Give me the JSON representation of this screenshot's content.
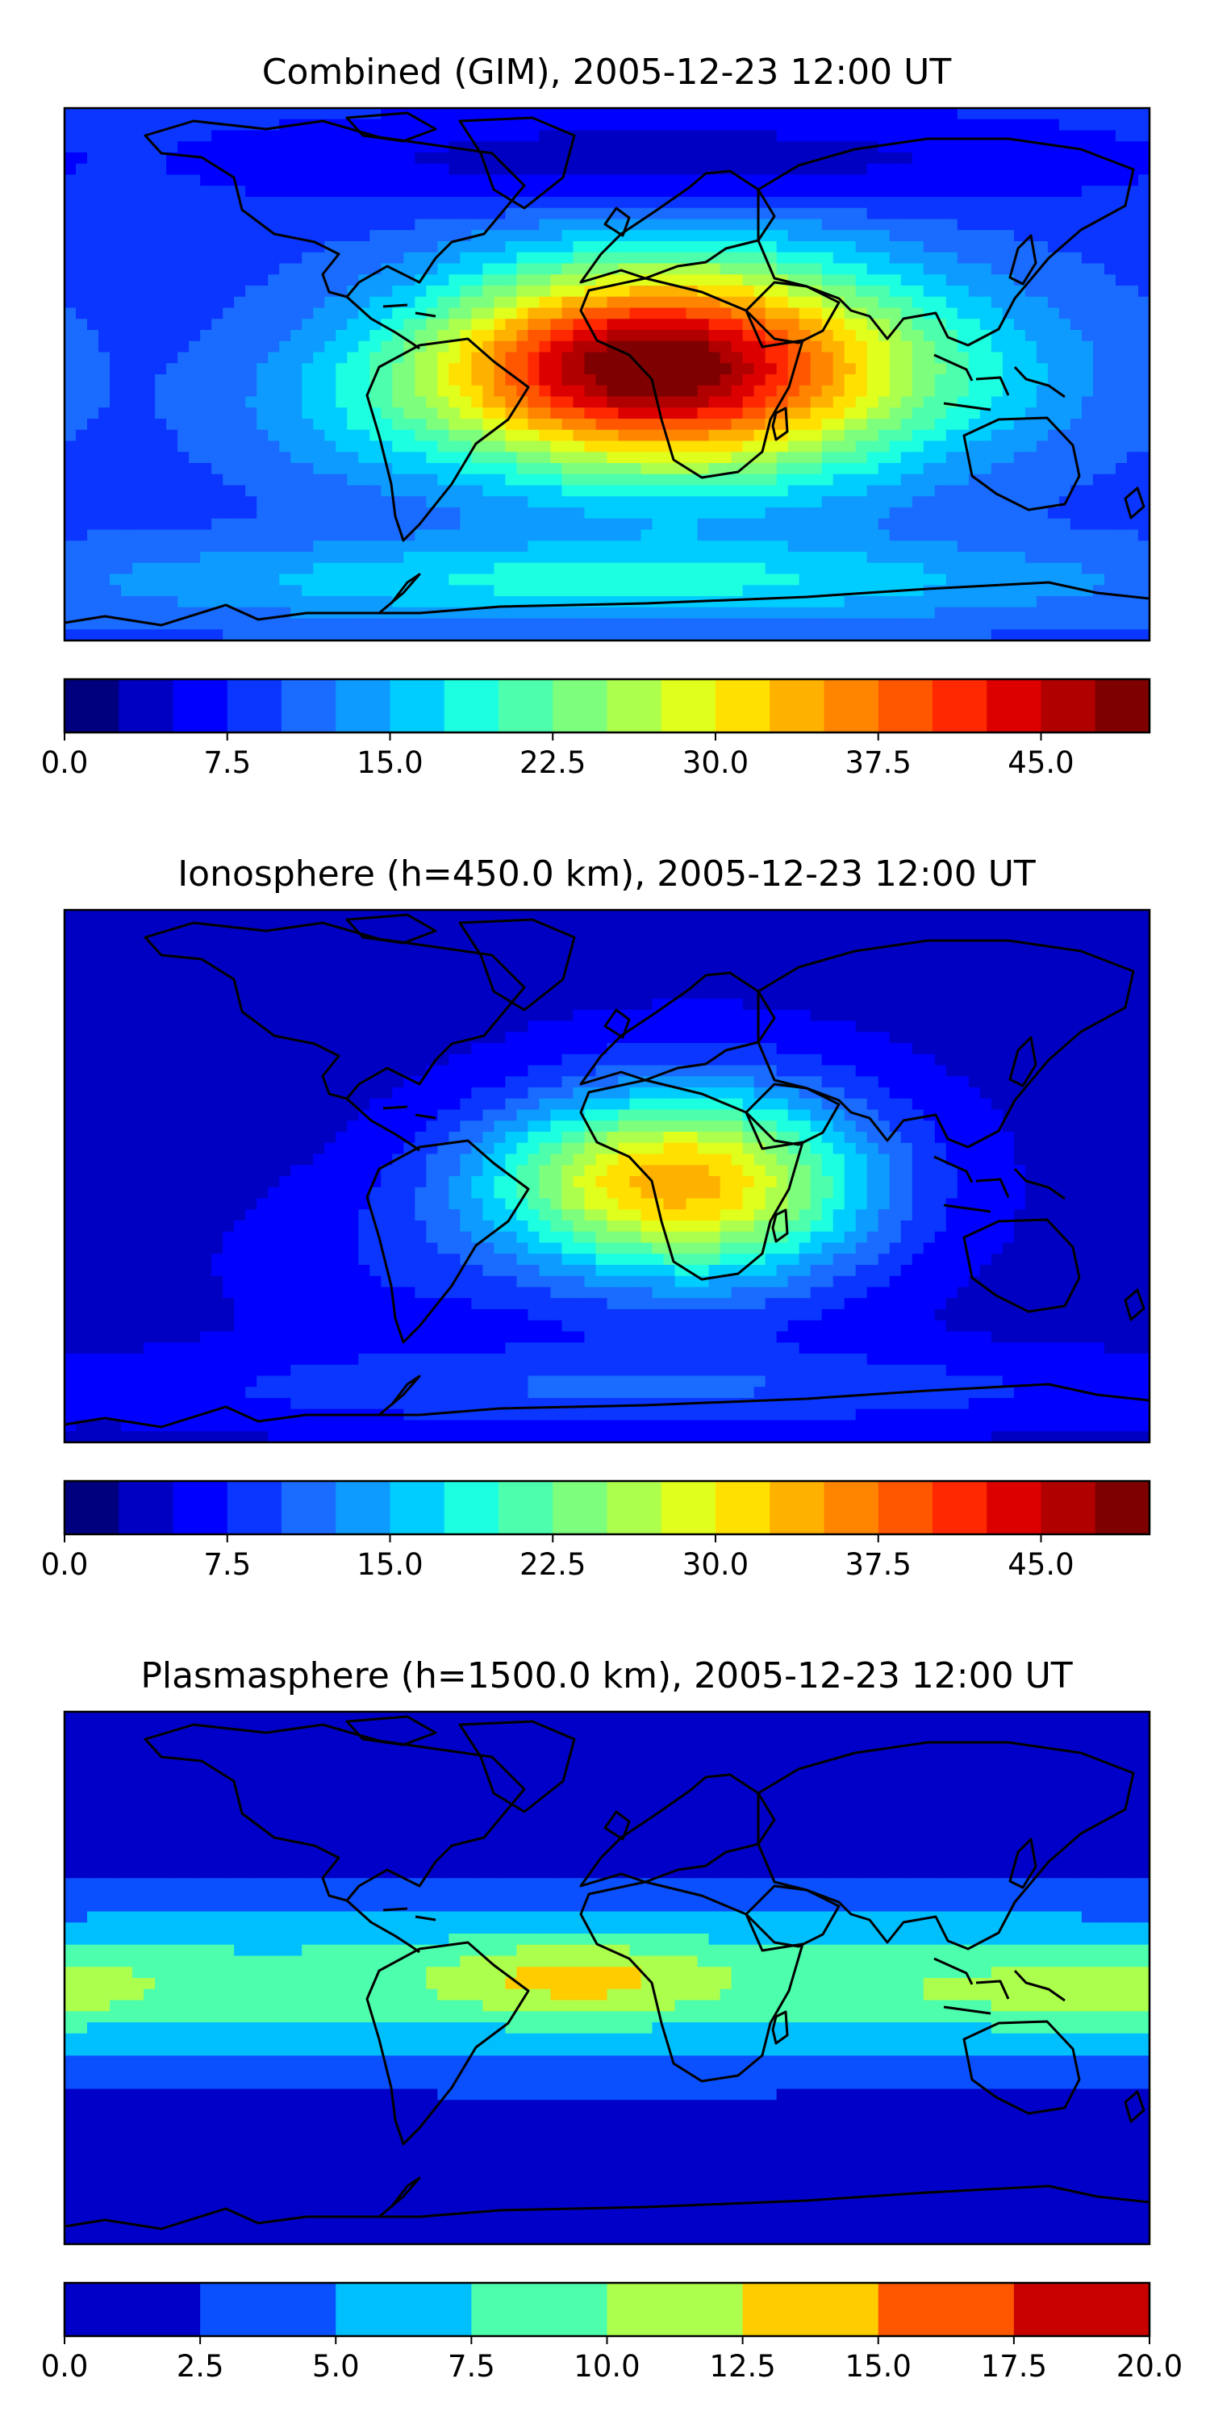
{
  "panels": [
    {
      "title": "Combined (GIM), 2005-12-23 12:00 UT",
      "vmax": 50,
      "levels": 20,
      "colorbar_ticks": [
        "0.0",
        "7.5",
        "15.0",
        "22.5",
        "30.0",
        "37.5",
        "45.0"
      ],
      "colorbar_tick_values": [
        0,
        7.5,
        15,
        22.5,
        30,
        37.5,
        45
      ],
      "colorbar_colors": [
        "#00007f",
        "#0000c3",
        "#0000ff",
        "#0a36ff",
        "#1a6bff",
        "#0d9bff",
        "#00cdff",
        "#1cffe0",
        "#4dffad",
        "#7dff7d",
        "#adff4d",
        "#e0ff1c",
        "#ffe000",
        "#ffb100",
        "#ff8500",
        "#ff5600",
        "#ff2800",
        "#dd0000",
        "#b00000",
        "#7f0000"
      ],
      "field": {
        "background": 9,
        "blobs": [
          {
            "lon": 25,
            "lat": 2,
            "sx": 55,
            "sy": 26,
            "amp": 36
          },
          {
            "lon": -12,
            "lat": 3,
            "sx": 40,
            "sy": 18,
            "amp": 8
          },
          {
            "lon": 125,
            "lat": 0,
            "sx": 38,
            "sy": 20,
            "amp": 3
          },
          {
            "lon": -80,
            "lat": -12,
            "sx": 35,
            "sy": 18,
            "amp": 4
          },
          {
            "lon": 0,
            "lat": -70,
            "sx": 120,
            "sy": 10,
            "amp": 9
          },
          {
            "lon": 20,
            "lat": 72,
            "sx": 100,
            "sy": 12,
            "amp": -6
          }
        ]
      }
    },
    {
      "title": "Ionosphere  (h=450.0 km), 2005-12-23 12:00 UT",
      "vmax": 50,
      "levels": 20,
      "colorbar_ticks": [
        "0.0",
        "7.5",
        "15.0",
        "22.5",
        "30.0",
        "37.5",
        "45.0"
      ],
      "colorbar_tick_values": [
        0,
        7.5,
        15,
        22.5,
        30,
        37.5,
        45
      ],
      "colorbar_colors": [
        "#00007f",
        "#0000c3",
        "#0000ff",
        "#0a36ff",
        "#1a6bff",
        "#0d9bff",
        "#00cdff",
        "#1cffe0",
        "#4dffad",
        "#7dff7d",
        "#adff4d",
        "#e0ff1c",
        "#ffe000",
        "#ffb100",
        "#ff8500",
        "#ff5600",
        "#ff2800",
        "#dd0000",
        "#b00000",
        "#7f0000"
      ],
      "field": {
        "background": 4,
        "blobs": [
          {
            "lon": 30,
            "lat": -3,
            "sx": 42,
            "sy": 24,
            "amp": 27
          },
          {
            "lon": -15,
            "lat": 0,
            "sx": 35,
            "sy": 16,
            "amp": 6
          },
          {
            "lon": 10,
            "lat": -72,
            "sx": 120,
            "sy": 10,
            "amp": 6
          },
          {
            "lon": -70,
            "lat": -30,
            "sx": 40,
            "sy": 20,
            "amp": 3
          }
        ]
      }
    },
    {
      "title": "Plasmasphere (h=1500.0 km), 2005-12-23 12:00 UT",
      "vmax": 20,
      "levels": 8,
      "colorbar_ticks": [
        "0.0",
        "2.5",
        "5.0",
        "7.5",
        "10.0",
        "12.5",
        "15.0",
        "17.5",
        "20.0"
      ],
      "colorbar_tick_values": [
        0,
        2.5,
        5,
        7.5,
        10,
        12.5,
        15,
        17.5,
        20
      ],
      "colorbar_colors": [
        "#0000c8",
        "#0a50ff",
        "#00bfff",
        "#4dffad",
        "#adff4d",
        "#ffcc00",
        "#ff5600",
        "#c80000"
      ],
      "field": {
        "background": 1.2,
        "blobs": [
          {
            "lon": 0,
            "lat": -2,
            "sx": 500,
            "sy": 20,
            "amp": 7.5
          },
          {
            "lon": -10,
            "lat": 0,
            "sx": 32,
            "sy": 9,
            "amp": 5
          },
          {
            "lon": 140,
            "lat": -5,
            "sx": 35,
            "sy": 8,
            "amp": 2.5
          },
          {
            "lon": -170,
            "lat": -3,
            "sx": 22,
            "sy": 9,
            "amp": 2
          }
        ]
      }
    }
  ]
}
